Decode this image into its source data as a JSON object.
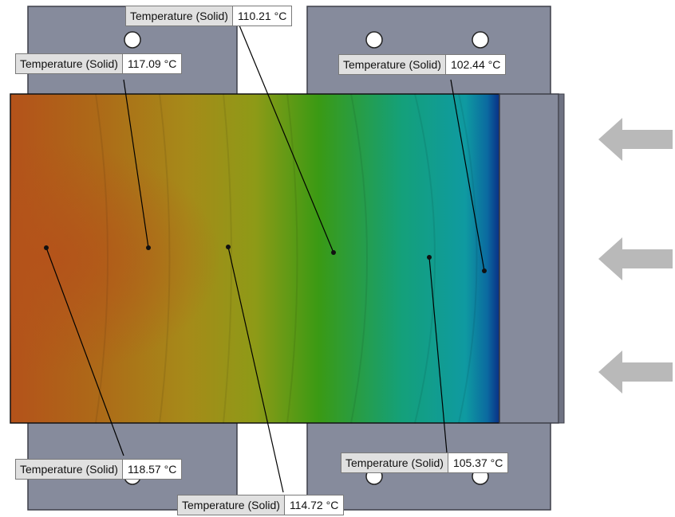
{
  "probes": [
    {
      "id": "p1",
      "name": "Temperature (Solid)",
      "value": "110.21 °C"
    },
    {
      "id": "p2",
      "name": "Temperature (Solid)",
      "value": "117.09 °C"
    },
    {
      "id": "p3",
      "name": "Temperature (Solid)",
      "value": "102.44 °C"
    },
    {
      "id": "p4",
      "name": "Temperature (Solid)",
      "value": "118.57 °C"
    },
    {
      "id": "p5",
      "name": "Temperature (Solid)",
      "value": "105.37 °C"
    },
    {
      "id": "p6",
      "name": "Temperature (Solid)",
      "value": "114.72 °C"
    }
  ],
  "colors": {
    "bracket": "#868b9c",
    "bracket_edge": "#3d3f48",
    "hot": "#b4521a",
    "warm": "#a6971c",
    "mid": "#3a9a14",
    "cool": "#0f9aa1",
    "cold": "#0a2f86",
    "arrow": "#b9b9b9"
  },
  "flow_arrows": [
    {
      "id": "a1",
      "icon": "left-arrow-icon"
    },
    {
      "id": "a2",
      "icon": "left-arrow-icon"
    },
    {
      "id": "a3",
      "icon": "left-arrow-icon"
    }
  ]
}
